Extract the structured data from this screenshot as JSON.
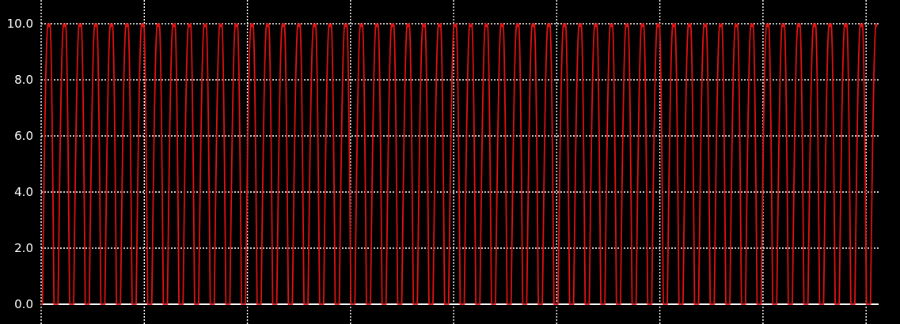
{
  "chart_data": {
    "type": "line",
    "title": "",
    "xlabel": "",
    "ylabel": "",
    "ylim": [
      0,
      10
    ],
    "yticks": [
      "0.0",
      "2.0",
      "4.0",
      "6.0",
      "8.0",
      "10.0"
    ],
    "xlim": [
      0,
      53.5
    ],
    "x_gridlines": [
      0,
      6.6,
      13.2,
      19.8,
      26.4,
      33.0,
      39.6,
      46.2,
      52.8
    ],
    "grid": true,
    "waveform": {
      "shape": "periodic pulse",
      "min": 0.0,
      "max": 10.0,
      "period": 1.0,
      "cycles": 53
    },
    "series": [
      {
        "color": "#e01010"
      }
    ],
    "colors": {
      "background": "#000000",
      "grid": "#ffffff",
      "axis_zero_line": "#ffffff",
      "line": "#e01010"
    }
  }
}
